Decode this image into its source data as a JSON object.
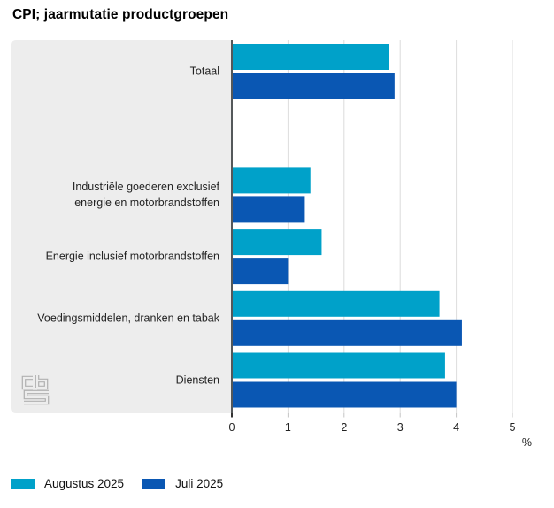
{
  "title": "CPI; jaarmutatie productgroepen",
  "chart_data": {
    "type": "bar",
    "orientation": "horizontal",
    "title": "CPI; jaarmutatie productgroepen",
    "categories": [
      "Totaal",
      "",
      "Industriële goederen exclusief\nenergie en motorbrandstoffen",
      "Energie inclusief motorbrandstoffen",
      "Voedingsmiddelen, dranken en tabak",
      "Diensten"
    ],
    "series": [
      {
        "name": "Augustus 2025",
        "color": "#00a1c9",
        "values": [
          2.8,
          null,
          1.4,
          1.6,
          3.7,
          3.8
        ]
      },
      {
        "name": "Juli 2025",
        "color": "#0a57b3",
        "values": [
          2.9,
          null,
          1.3,
          1.0,
          4.1,
          4.0
        ]
      }
    ],
    "xlabel": "%",
    "xlim": [
      0,
      5
    ],
    "xticks": [
      0,
      1,
      2,
      3,
      4,
      5
    ],
    "grid": true,
    "legend_position": "bottom",
    "colors": {
      "axis": "#54585a",
      "gridline": "#dcdcdc",
      "tick": "#c4c4c4",
      "zero_tick": "#333333",
      "panel_background": "#ededed",
      "plot_background": "#ffffff",
      "logo": "#b0b0b0"
    }
  },
  "legend": {
    "items": [
      {
        "label": "Augustus 2025",
        "color": "#00a1c9"
      },
      {
        "label": "Juli 2025",
        "color": "#0a57b3"
      }
    ]
  },
  "icons": {
    "logo": "cbs-logo"
  }
}
